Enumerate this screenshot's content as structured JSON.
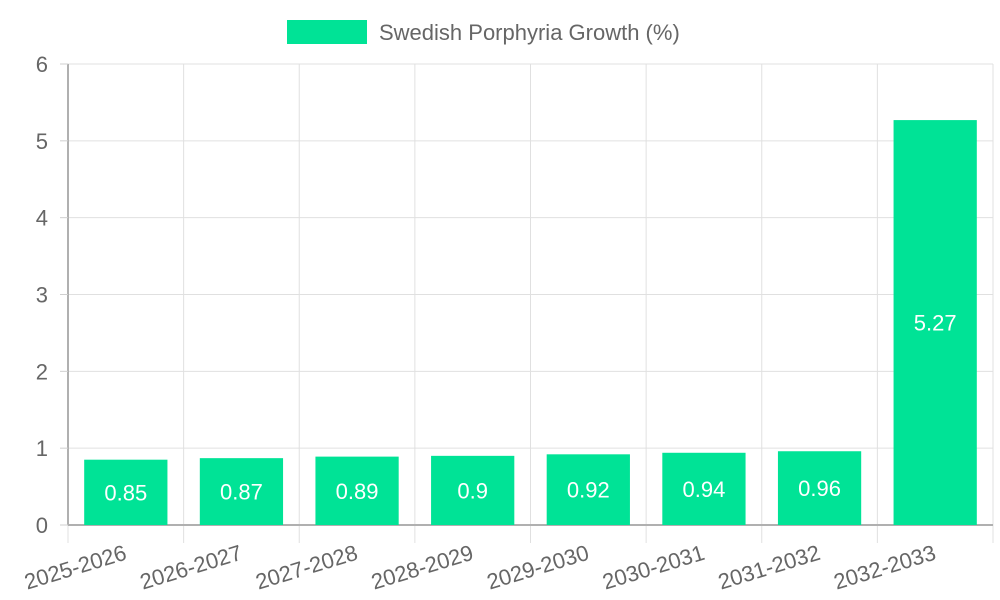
{
  "chart_data": {
    "type": "bar",
    "title": "",
    "xlabel": "",
    "ylabel": "",
    "categories": [
      "2025-2026",
      "2026-2027",
      "2027-2028",
      "2028-2029",
      "2029-2030",
      "2030-2031",
      "2031-2032",
      "2032-2033"
    ],
    "series": [
      {
        "name": "Swedish Porphyria Growth (%)",
        "values": [
          0.85,
          0.87,
          0.89,
          0.9,
          0.92,
          0.94,
          0.96,
          5.27
        ],
        "color": "#00e396"
      }
    ],
    "ylim": [
      0,
      6
    ],
    "yticks": [
      0,
      1,
      2,
      3,
      4,
      5,
      6
    ],
    "grid": true,
    "legend_position": "top-center",
    "data_labels": true
  }
}
